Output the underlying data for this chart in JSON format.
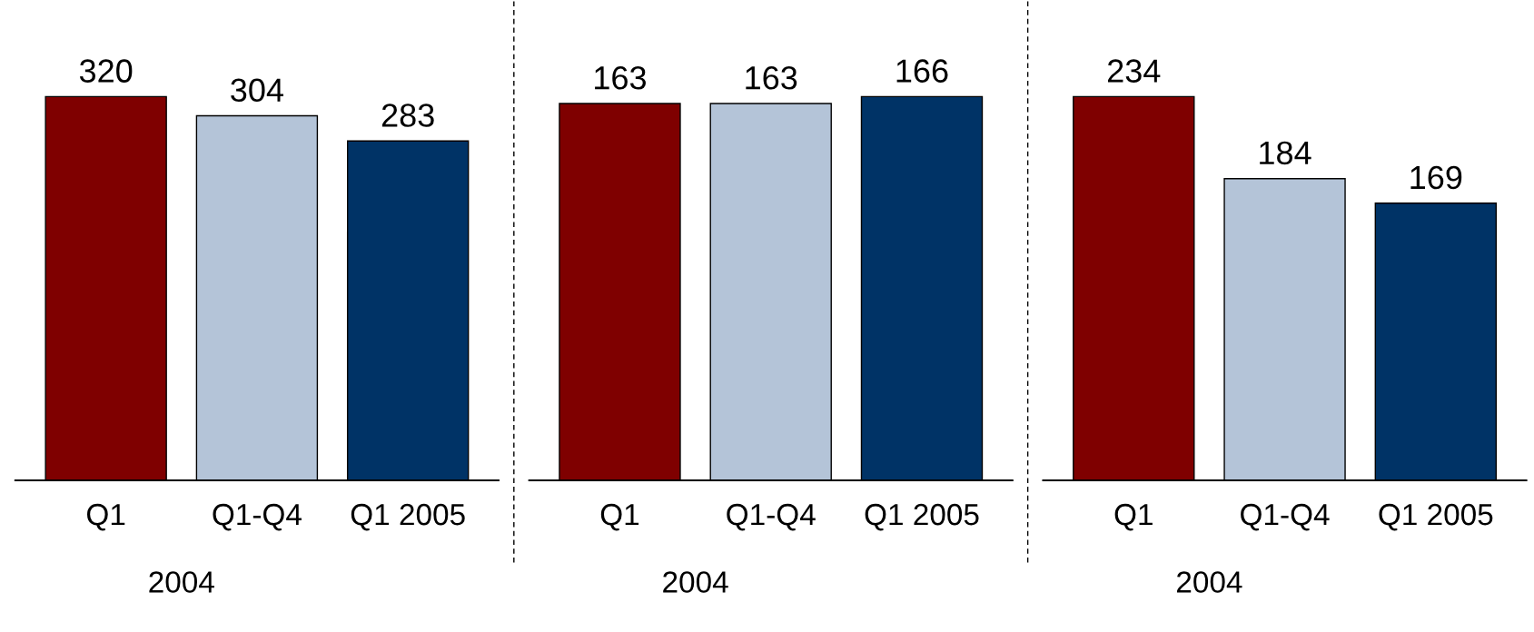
{
  "chart_data": [
    {
      "type": "bar",
      "categories": [
        "Q1",
        "Q1-Q4",
        "Q1 2005"
      ],
      "values": [
        320,
        304,
        283
      ],
      "colors": [
        "#7f0000",
        "#b4c4d8",
        "#003366"
      ],
      "data_labels": true,
      "tick_labels": "x",
      "grid": false,
      "annotations": [
        "2004"
      ]
    },
    {
      "type": "bar",
      "categories": [
        "Q1",
        "Q1-Q4",
        "Q1 2005"
      ],
      "values": [
        163,
        163,
        166
      ],
      "colors": [
        "#7f0000",
        "#b4c4d8",
        "#003366"
      ],
      "data_labels": true,
      "tick_labels": "x",
      "grid": false,
      "annotations": [
        "2004"
      ]
    },
    {
      "type": "bar",
      "categories": [
        "Q1",
        "Q1-Q4",
        "Q1 2005"
      ],
      "values": [
        234,
        184,
        169
      ],
      "colors": [
        "#7f0000",
        "#b4c4d8",
        "#003366"
      ],
      "data_labels": true,
      "tick_labels": "x",
      "grid": false,
      "annotations": [
        "2004"
      ]
    }
  ]
}
